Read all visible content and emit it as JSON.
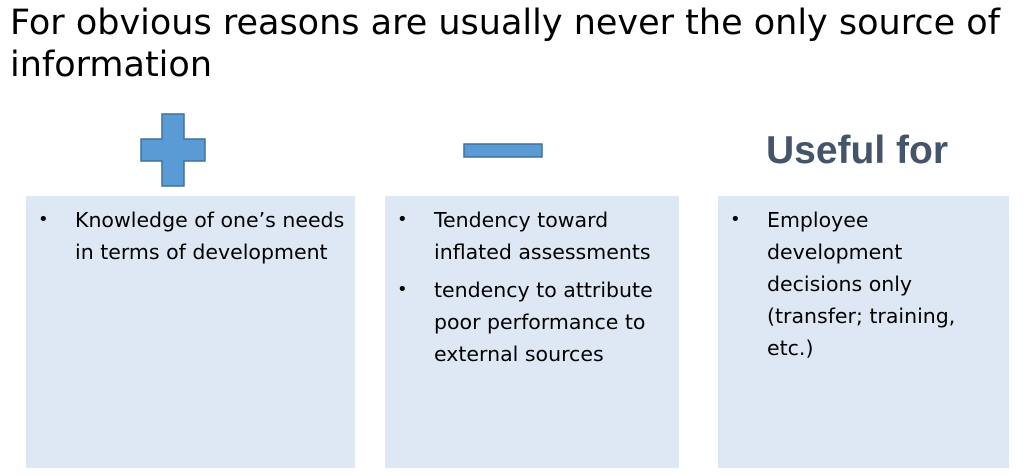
{
  "title": "For obvious reasons are usually never the only source of information",
  "columns": {
    "pros": {
      "icon": "plus-icon",
      "items": [
        "Knowledge of one’s needs in terms of development"
      ]
    },
    "cons": {
      "icon": "minus-icon",
      "items": [
        "Tendency toward inflated assessments",
        "tendency to attribute poor performance to external sources"
      ]
    },
    "useful": {
      "heading": "Useful for",
      "items": [
        "Employee development decisions only (transfer; training, etc.)"
      ]
    }
  },
  "colors": {
    "icon_fill": "#5b9bd5",
    "icon_stroke": "#41719c",
    "heading": "#44546a",
    "box_fill": "#dde8f4"
  }
}
